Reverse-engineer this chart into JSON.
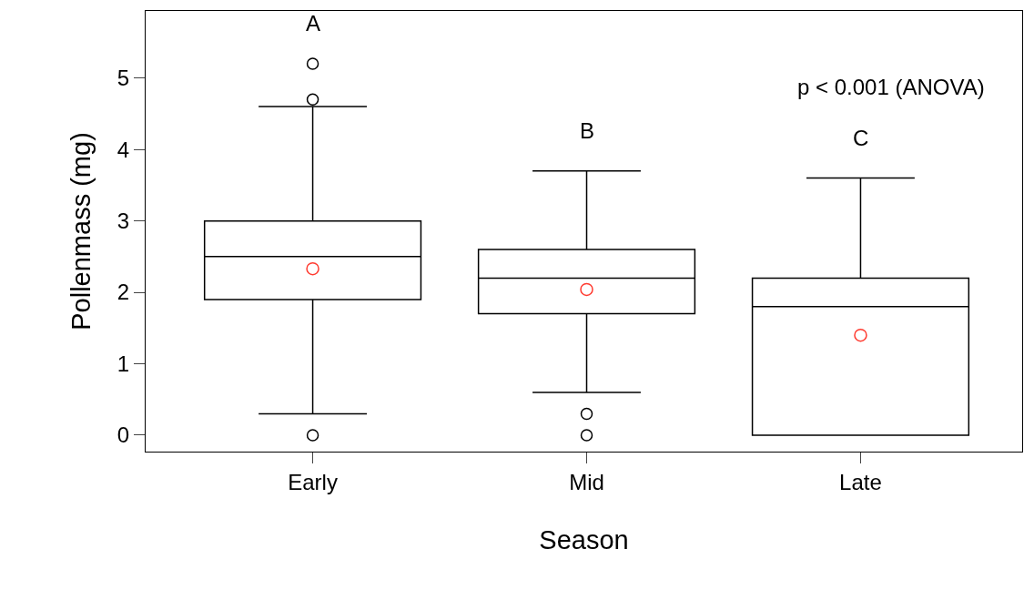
{
  "chart_data": {
    "type": "box",
    "xlabel": "Season",
    "ylabel": "Pollenmass (mg)",
    "categories": [
      "Early",
      "Mid",
      "Late"
    ],
    "boxes": [
      {
        "low": 0.3,
        "q1": 1.9,
        "median": 2.5,
        "q3": 3.0,
        "high": 4.6,
        "outliers": [
          5.2,
          4.7,
          0
        ]
      },
      {
        "low": 0.6,
        "q1": 1.7,
        "median": 2.2,
        "q3": 2.6,
        "high": 3.7,
        "outliers": [
          0.3,
          0
        ]
      },
      {
        "low": 0,
        "q1": 0,
        "median": 1.8,
        "q3": 2.2,
        "high": 3.6
      }
    ],
    "color": "#000000",
    "series": [
      {
        "type": "scatter",
        "x": [
          "Early",
          "Mid",
          "Late"
        ],
        "color": "#ff3b30",
        "values": [
          2.33,
          2.04,
          1.4
        ]
      }
    ],
    "ylim": [
      -0.23,
      5.94
    ],
    "yticks": [
      0,
      1,
      2,
      3,
      4,
      5
    ],
    "annotations": [
      "A",
      "B",
      "C",
      "p < 0.001 (ANOVA)"
    ],
    "marker": "circle"
  }
}
